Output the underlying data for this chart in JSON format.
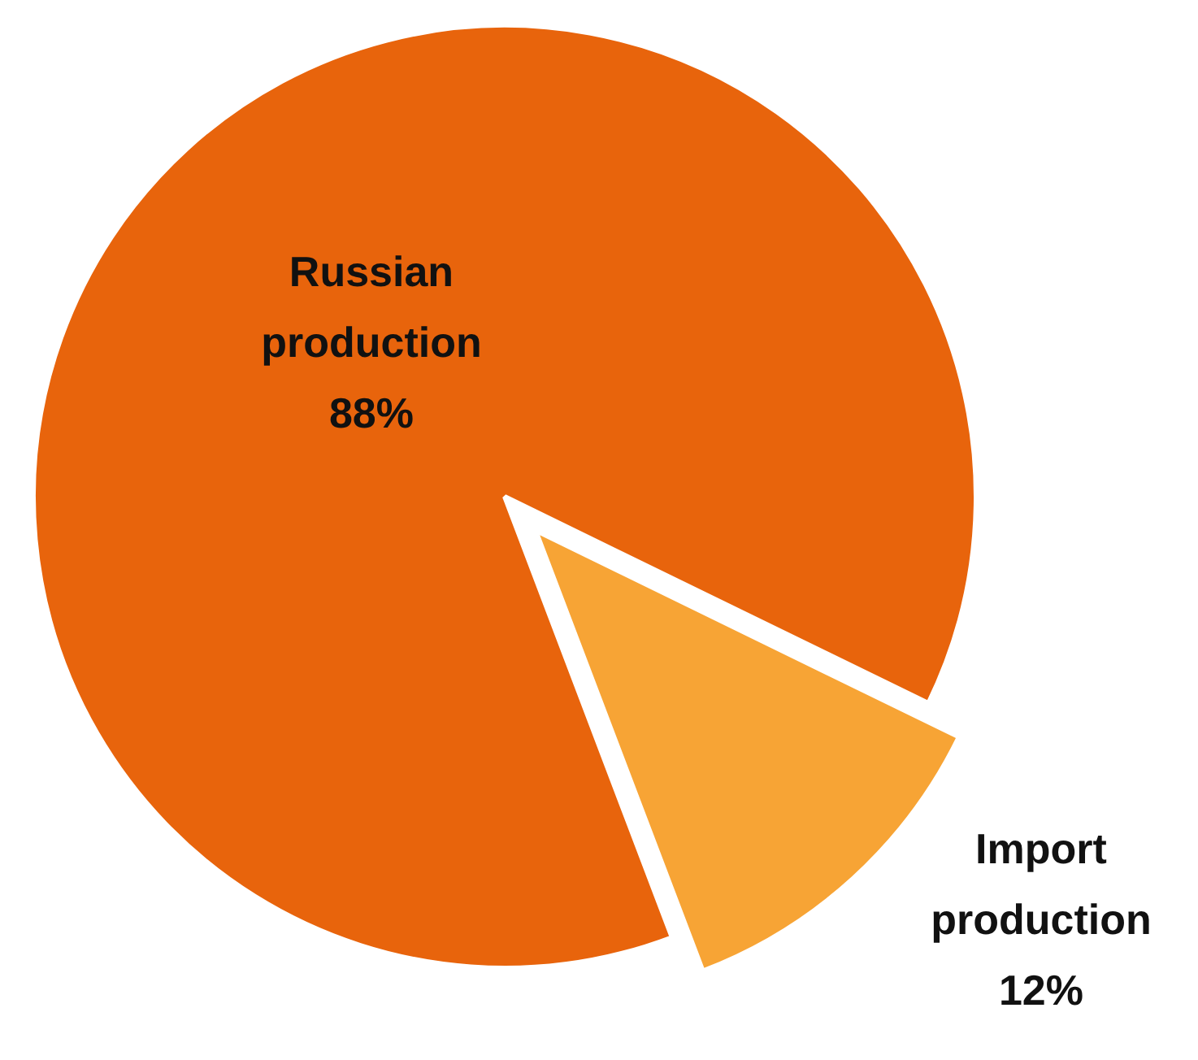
{
  "chart_data": {
    "type": "pie",
    "categories": [
      "Russian production",
      "Import production"
    ],
    "values": [
      88,
      12
    ],
    "colors": [
      "#e8640c",
      "#f7a435"
    ],
    "value_labels": [
      "88%",
      "12%"
    ]
  }
}
